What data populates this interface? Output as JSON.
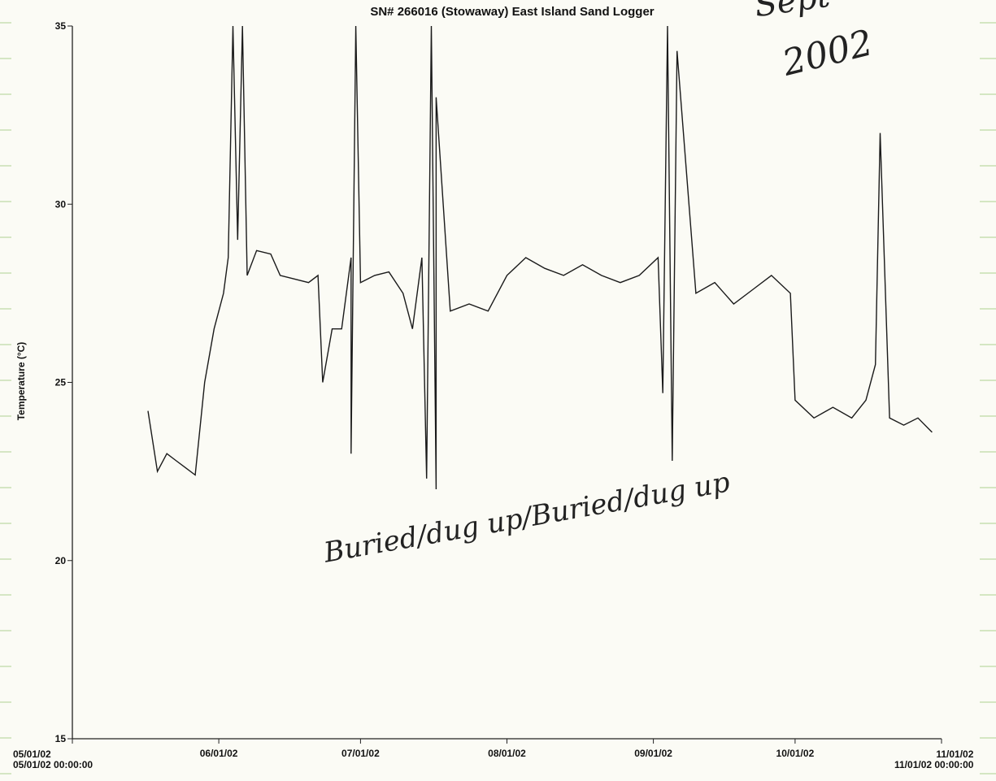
{
  "title": "SN# 266016 (Stowaway) East Island Sand Logger",
  "annotations": {
    "handwritten_year": "2002",
    "handwritten_month": "Sept",
    "handwritten_note": "Buried/dug up/Buried/dug up"
  },
  "chart_data": {
    "type": "line",
    "title": "SN# 266016 (Stowaway) East Island Sand Logger",
    "xlabel": "",
    "ylabel": "Temperature   (°C)",
    "ylim": [
      15,
      35
    ],
    "yticks": [
      15,
      20,
      25,
      30,
      35
    ],
    "xlim": [
      "05/01/02",
      "11/01/02"
    ],
    "xticks": [
      "05/01/02",
      "06/01/02",
      "07/01/02",
      "08/01/02",
      "09/01/02",
      "10/01/02",
      "11/01/02"
    ],
    "x_start_label": "05/01/02 00:00:00",
    "x_end_label": "11/01/02 00:00:00",
    "grid": false,
    "colors": {
      "line": "#1a1a1a",
      "ruled_lines": "#bcd9a3"
    },
    "series": [
      {
        "values": [
          [
            "05/17/02",
            24.2
          ],
          [
            "05/19/02",
            22.5
          ],
          [
            "05/21/02",
            23.0
          ],
          [
            "05/23/02",
            22.8
          ],
          [
            "05/25/02",
            22.6
          ],
          [
            "05/27/02",
            22.4
          ],
          [
            "05/29/02",
            25.0
          ],
          [
            "05/31/02",
            26.5
          ],
          [
            "06/02/02",
            27.5
          ],
          [
            "06/03/02",
            28.5
          ],
          [
            "06/04/02",
            35.0
          ],
          [
            "06/05/02",
            29.0
          ],
          [
            "06/06/02",
            35.0
          ],
          [
            "06/07/02",
            28.0
          ],
          [
            "06/09/02",
            28.7
          ],
          [
            "06/12/02",
            28.6
          ],
          [
            "06/14/02",
            28.0
          ],
          [
            "06/17/02",
            27.9
          ],
          [
            "06/20/02",
            27.8
          ],
          [
            "06/22/02",
            28.0
          ],
          [
            "06/23/02",
            25.0
          ],
          [
            "06/25/02",
            26.5
          ],
          [
            "06/27/02",
            26.5
          ],
          [
            "06/29/02",
            28.5
          ],
          [
            "06/29/02",
            23.0
          ],
          [
            "06/30/02",
            35.0
          ],
          [
            "07/01/02",
            27.8
          ],
          [
            "07/04/02",
            28.0
          ],
          [
            "07/07/02",
            28.1
          ],
          [
            "07/10/02",
            27.5
          ],
          [
            "07/12/02",
            26.5
          ],
          [
            "07/14/02",
            28.5
          ],
          [
            "07/15/02",
            22.3
          ],
          [
            "07/16/02",
            35.0
          ],
          [
            "07/17/02",
            22.0
          ],
          [
            "07/17/02",
            33.0
          ],
          [
            "07/20/02",
            27.0
          ],
          [
            "07/24/02",
            27.2
          ],
          [
            "07/28/02",
            27.0
          ],
          [
            "08/01/02",
            28.0
          ],
          [
            "08/05/02",
            28.5
          ],
          [
            "08/09/02",
            28.2
          ],
          [
            "08/13/02",
            28.0
          ],
          [
            "08/17/02",
            28.3
          ],
          [
            "08/21/02",
            28.0
          ],
          [
            "08/25/02",
            27.8
          ],
          [
            "08/29/02",
            28.0
          ],
          [
            "09/02/02",
            28.5
          ],
          [
            "09/03/02",
            24.7
          ],
          [
            "09/04/02",
            35.0
          ],
          [
            "09/05/02",
            22.8
          ],
          [
            "09/06/02",
            34.3
          ],
          [
            "09/10/02",
            27.5
          ],
          [
            "09/14/02",
            27.8
          ],
          [
            "09/18/02",
            27.2
          ],
          [
            "09/22/02",
            27.6
          ],
          [
            "09/26/02",
            28.0
          ],
          [
            "09/30/02",
            27.5
          ],
          [
            "10/01/02",
            24.5
          ],
          [
            "10/05/02",
            24.0
          ],
          [
            "10/09/02",
            24.3
          ],
          [
            "10/13/02",
            24.0
          ],
          [
            "10/16/02",
            24.5
          ],
          [
            "10/18/02",
            25.5
          ],
          [
            "10/19/02",
            32.0
          ],
          [
            "10/21/02",
            24.0
          ],
          [
            "10/24/02",
            23.8
          ],
          [
            "10/27/02",
            24.0
          ],
          [
            "10/30/02",
            23.6
          ]
        ]
      }
    ]
  }
}
